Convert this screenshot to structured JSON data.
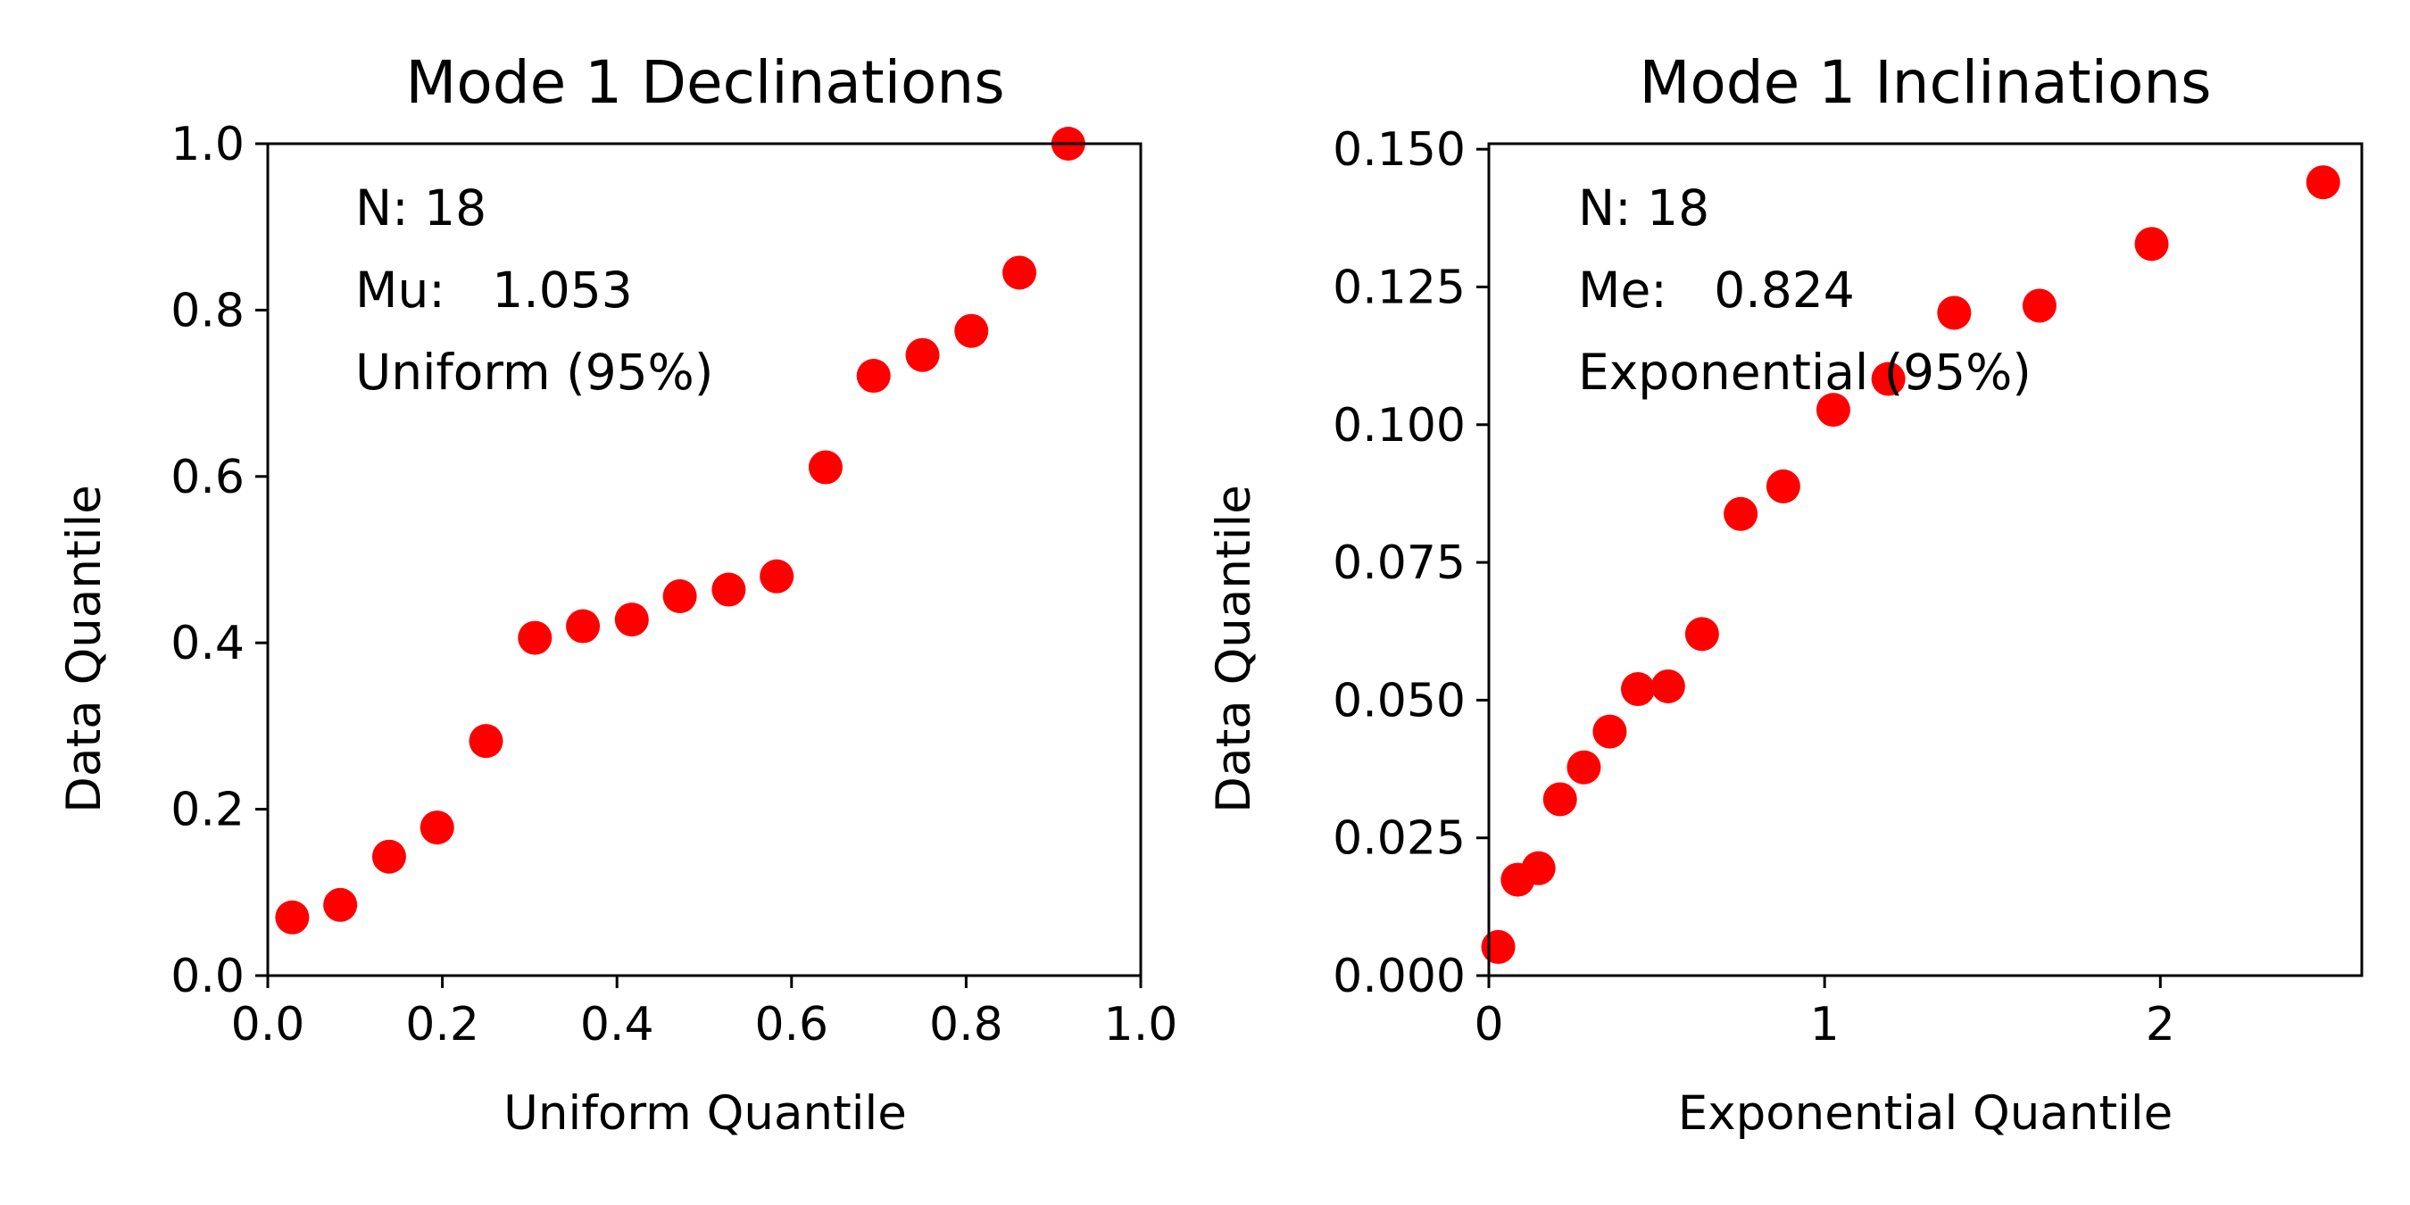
{
  "chart_data": [
    {
      "type": "scatter",
      "title": "Mode 1 Declinations",
      "xlabel": "Uniform Quantile",
      "ylabel": "Data Quantile",
      "xlim": [
        0,
        1
      ],
      "ylim": [
        0,
        1
      ],
      "xticks": [
        0.0,
        0.2,
        0.4,
        0.6,
        0.8,
        1.0
      ],
      "xtick_labels": [
        "0.0",
        "0.2",
        "0.4",
        "0.6",
        "0.8",
        "1.0"
      ],
      "yticks": [
        0.0,
        0.2,
        0.4,
        0.6,
        0.8,
        1.0
      ],
      "ytick_labels": [
        "0.0",
        "0.2",
        "0.4",
        "0.6",
        "0.8",
        "1.0"
      ],
      "grid": false,
      "marker_color": "#ff0000",
      "annotations": [
        "N: 18",
        "Mu:   1.053",
        "Uniform (95%)"
      ],
      "points": [
        {
          "x": 0.028,
          "y": 0.07
        },
        {
          "x": 0.083,
          "y": 0.085
        },
        {
          "x": 0.139,
          "y": 0.143
        },
        {
          "x": 0.194,
          "y": 0.178
        },
        {
          "x": 0.25,
          "y": 0.282
        },
        {
          "x": 0.306,
          "y": 0.406
        },
        {
          "x": 0.361,
          "y": 0.42
        },
        {
          "x": 0.417,
          "y": 0.428
        },
        {
          "x": 0.472,
          "y": 0.456
        },
        {
          "x": 0.528,
          "y": 0.464
        },
        {
          "x": 0.583,
          "y": 0.48
        },
        {
          "x": 0.639,
          "y": 0.611
        },
        {
          "x": 0.694,
          "y": 0.721
        },
        {
          "x": 0.75,
          "y": 0.746
        },
        {
          "x": 0.806,
          "y": 0.775
        },
        {
          "x": 0.861,
          "y": 0.845
        },
        {
          "x": 0.917,
          "y": 1.0
        }
      ]
    },
    {
      "type": "scatter",
      "title": "Mode 1 Inclinations",
      "xlabel": "Exponential Quantile",
      "ylabel": "Data Quantile",
      "xlim": [
        0,
        2.6
      ],
      "ylim": [
        0,
        0.151
      ],
      "xticks": [
        0,
        1,
        2
      ],
      "xtick_labels": [
        "0",
        "1",
        "2"
      ],
      "yticks": [
        0.0,
        0.025,
        0.05,
        0.075,
        0.1,
        0.125,
        0.15
      ],
      "ytick_labels": [
        "0.000",
        "0.025",
        "0.050",
        "0.075",
        "0.100",
        "0.125",
        "0.150"
      ],
      "grid": false,
      "marker_color": "#ff0000",
      "annotations": [
        "N: 18",
        "Me:   0.824",
        "Exponential (95%)"
      ],
      "points": [
        {
          "x": 0.028,
          "y": 0.0052
        },
        {
          "x": 0.086,
          "y": 0.0174
        },
        {
          "x": 0.148,
          "y": 0.0195
        },
        {
          "x": 0.212,
          "y": 0.032
        },
        {
          "x": 0.283,
          "y": 0.0378
        },
        {
          "x": 0.36,
          "y": 0.0443
        },
        {
          "x": 0.444,
          "y": 0.052
        },
        {
          "x": 0.534,
          "y": 0.0525
        },
        {
          "x": 0.635,
          "y": 0.062
        },
        {
          "x": 0.75,
          "y": 0.0838
        },
        {
          "x": 0.877,
          "y": 0.0888
        },
        {
          "x": 1.026,
          "y": 0.1027
        },
        {
          "x": 1.19,
          "y": 0.1083
        },
        {
          "x": 1.386,
          "y": 0.1203
        },
        {
          "x": 1.64,
          "y": 0.1216
        },
        {
          "x": 1.974,
          "y": 0.1328
        },
        {
          "x": 2.485,
          "y": 0.144
        }
      ]
    }
  ]
}
